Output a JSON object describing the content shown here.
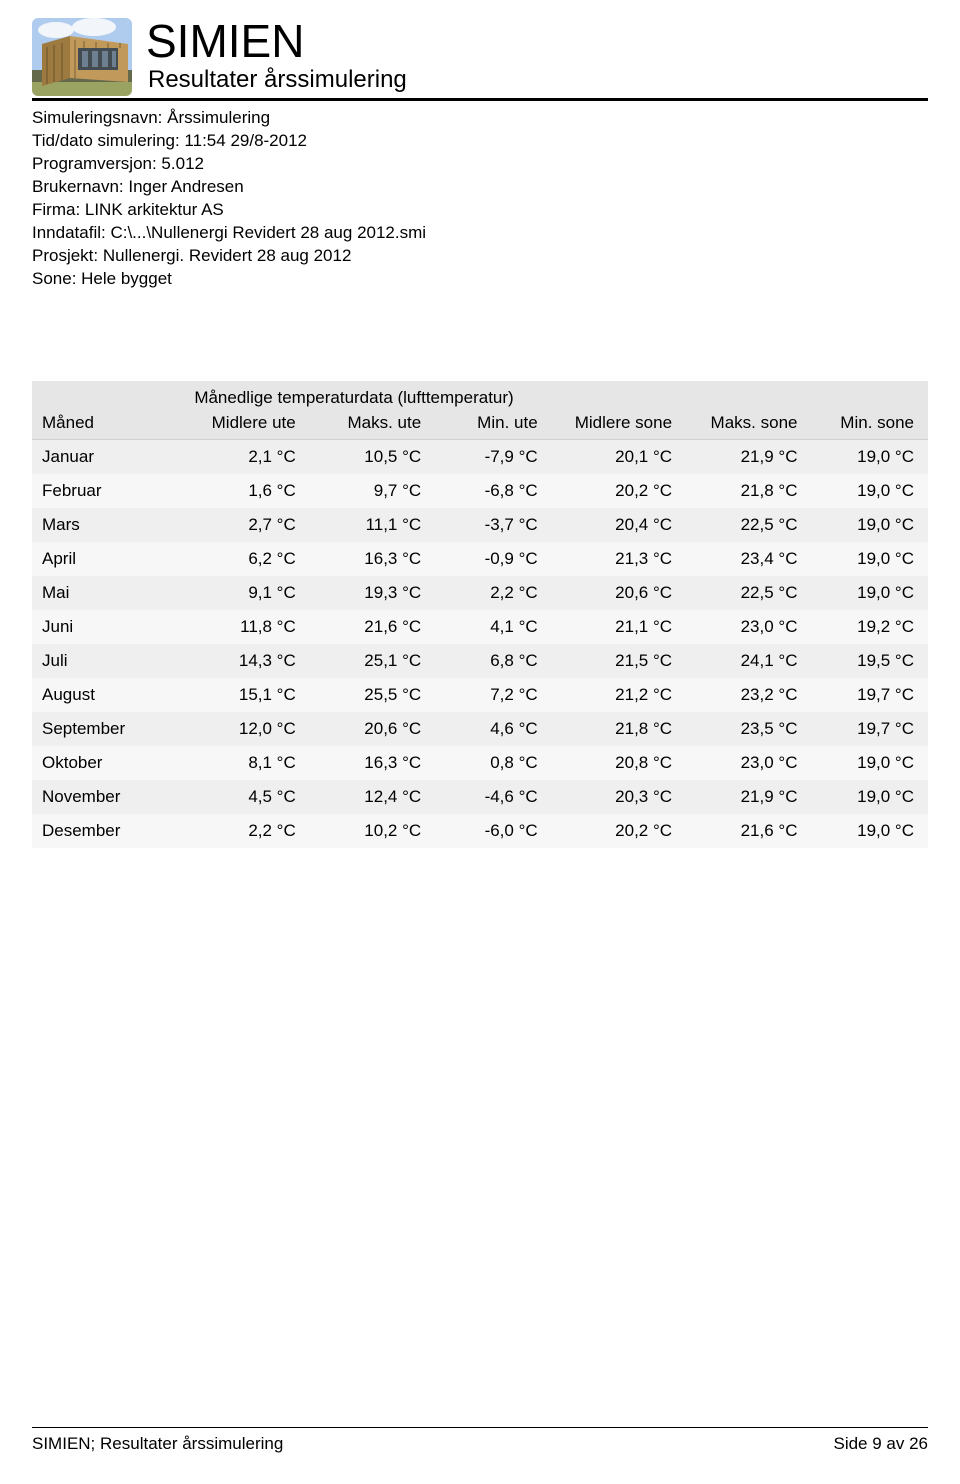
{
  "header": {
    "title": "SIMIEN",
    "subtitle": "Resultater årssimulering"
  },
  "meta": [
    "Simuleringsnavn: Årssimulering",
    "Tid/dato simulering: 11:54 29/8-2012",
    "Programversjon: 5.012",
    "Brukernavn: Inger Andresen",
    "Firma: LINK arkitektur AS",
    "Inndatafil: C:\\...\\Nullenergi Revidert 28 aug 2012.smi",
    "Prosjekt: Nullenergi. Revidert 28 aug 2012",
    "Sone: Hele bygget"
  ],
  "table": {
    "super_header": "Månedlige temperaturdata (lufttemperatur)",
    "columns": [
      "Måned",
      "Midlere ute",
      "Maks. ute",
      "Min. ute",
      "Midlere sone",
      "Maks. sone",
      "Min. sone"
    ],
    "rows": [
      [
        "Januar",
        "2,1 °C",
        "10,5 °C",
        "-7,9 °C",
        "20,1 °C",
        "21,9 °C",
        "19,0 °C"
      ],
      [
        "Februar",
        "1,6 °C",
        "9,7 °C",
        "-6,8 °C",
        "20,2 °C",
        "21,8 °C",
        "19,0 °C"
      ],
      [
        "Mars",
        "2,7 °C",
        "11,1 °C",
        "-3,7 °C",
        "20,4 °C",
        "22,5 °C",
        "19,0 °C"
      ],
      [
        "April",
        "6,2 °C",
        "16,3 °C",
        "-0,9 °C",
        "21,3 °C",
        "23,4 °C",
        "19,0 °C"
      ],
      [
        "Mai",
        "9,1 °C",
        "19,3 °C",
        "2,2 °C",
        "20,6 °C",
        "22,5 °C",
        "19,0 °C"
      ],
      [
        "Juni",
        "11,8 °C",
        "21,6 °C",
        "4,1 °C",
        "21,1 °C",
        "23,0 °C",
        "19,2 °C"
      ],
      [
        "Juli",
        "14,3 °C",
        "25,1 °C",
        "6,8 °C",
        "21,5 °C",
        "24,1 °C",
        "19,5 °C"
      ],
      [
        "August",
        "15,1 °C",
        "25,5 °C",
        "7,2 °C",
        "21,2 °C",
        "23,2 °C",
        "19,7 °C"
      ],
      [
        "September",
        "12,0 °C",
        "20,6 °C",
        "4,6 °C",
        "21,8 °C",
        "23,5 °C",
        "19,7 °C"
      ],
      [
        "Oktober",
        "8,1 °C",
        "16,3 °C",
        "0,8 °C",
        "20,8 °C",
        "23,0 °C",
        "19,0 °C"
      ],
      [
        "November",
        "4,5 °C",
        "12,4 °C",
        "-4,6 °C",
        "20,3 °C",
        "21,9 °C",
        "19,0 °C"
      ],
      [
        "Desember",
        "2,2 °C",
        "10,2 °C",
        "-6,0 °C",
        "20,2 °C",
        "21,6 °C",
        "19,0 °C"
      ]
    ],
    "col_widths_pct": [
      17,
      14,
      14,
      13,
      15,
      14,
      13
    ]
  },
  "footer": {
    "left": "SIMIEN; Resultater årssimulering",
    "right": "Side 9 av 26"
  },
  "colors": {
    "text": "#000000",
    "background": "#ffffff",
    "rule": "#000000",
    "table_header_bg": "#e6e6e6",
    "row_odd_bg": "#efefef",
    "row_even_bg": "#f7f7f7",
    "sky": "#afccef",
    "cloud": "#f2f6fb",
    "wood_light": "#c19a5b",
    "wood_dark": "#9d7a3f",
    "window": "#2c3e50",
    "ground": "#9aa362",
    "deck_dark": "#3a3a3a"
  }
}
